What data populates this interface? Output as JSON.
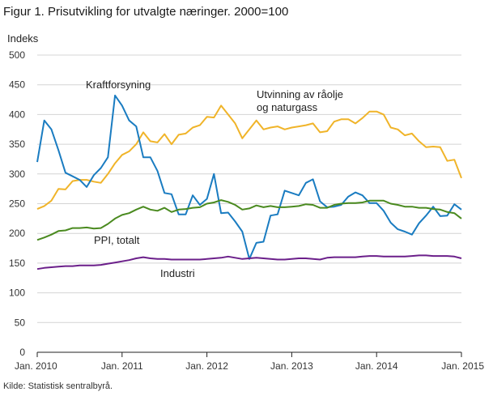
{
  "figure_title": "Figur 1. Prisutvikling for utvalgte næringer. 2000=100",
  "source": "Kilde: Statistisk sentralbyrå.",
  "chart_data": {
    "type": "line",
    "title": "Figur 1. Prisutvikling for utvalgte næringer. 2000=100",
    "ylabel": "Indeks",
    "ylim": [
      0,
      500
    ],
    "yticks": [
      0,
      50,
      100,
      150,
      200,
      250,
      300,
      350,
      400,
      450,
      500
    ],
    "x_ticks": [
      "Jan. 2010",
      "Jan. 2011",
      "Jan. 2012",
      "Jan. 2013",
      "Jan. 2014",
      "Jan. 2015"
    ],
    "x_range": [
      "2010-01",
      "2015-01"
    ],
    "grid": "horizontal",
    "series": [
      {
        "name": "Kraftforsyning",
        "color": "#1a7cc1",
        "label_at": [
          "2010-06",
          2.0
        ],
        "values": [
          320,
          390,
          375,
          340,
          302,
          296,
          290,
          278,
          298,
          310,
          328,
          432,
          415,
          390,
          380,
          328,
          328,
          305,
          268,
          266,
          232,
          232,
          264,
          248,
          258,
          300,
          234,
          235,
          220,
          203,
          157,
          184,
          186,
          230,
          232,
          272,
          268,
          264,
          285,
          291,
          254,
          244,
          245,
          248,
          262,
          269,
          264,
          251,
          251,
          238,
          218,
          207,
          203,
          198,
          217,
          230,
          245,
          229,
          230,
          249,
          240
        ]
      },
      {
        "name": "Utvinning av råolje og naturgass",
        "label_lines": [
          "Utvinning av råolje",
          "og naturgass"
        ],
        "color": "#f0b429",
        "values": [
          241,
          246,
          255,
          275,
          274,
          288,
          290,
          290,
          287,
          285,
          300,
          318,
          332,
          338,
          350,
          370,
          355,
          353,
          367,
          350,
          366,
          368,
          378,
          382,
          396,
          395,
          415,
          400,
          385,
          360,
          375,
          390,
          375,
          378,
          380,
          375,
          378,
          380,
          382,
          385,
          370,
          372,
          388,
          392,
          392,
          385,
          394,
          405,
          405,
          400,
          378,
          375,
          365,
          368,
          355,
          345,
          346,
          345,
          322,
          324,
          293
        ]
      },
      {
        "name": "PPI, totalt",
        "color": "#4a8a1f",
        "values": [
          189,
          193,
          198,
          204,
          205,
          209,
          209,
          210,
          208,
          209,
          216,
          225,
          231,
          234,
          240,
          245,
          240,
          238,
          243,
          236,
          240,
          241,
          243,
          244,
          250,
          252,
          256,
          253,
          248,
          240,
          242,
          247,
          244,
          246,
          244,
          244,
          245,
          246,
          249,
          248,
          243,
          243,
          248,
          250,
          251,
          251,
          252,
          255,
          255,
          255,
          250,
          248,
          245,
          245,
          243,
          243,
          241,
          240,
          236,
          234,
          225
        ]
      },
      {
        "name": "Industri",
        "color": "#6b1f8a",
        "values": [
          140,
          142,
          143,
          144,
          145,
          145,
          146,
          146,
          146,
          147,
          149,
          151,
          153,
          155,
          158,
          160,
          158,
          157,
          157,
          156,
          156,
          156,
          156,
          156,
          157,
          158,
          159,
          161,
          159,
          157,
          158,
          159,
          158,
          157,
          156,
          156,
          157,
          158,
          158,
          157,
          156,
          159,
          160,
          160,
          160,
          160,
          161,
          162,
          162,
          161,
          161,
          161,
          161,
          162,
          163,
          163,
          162,
          162,
          162,
          161,
          158
        ]
      }
    ]
  }
}
